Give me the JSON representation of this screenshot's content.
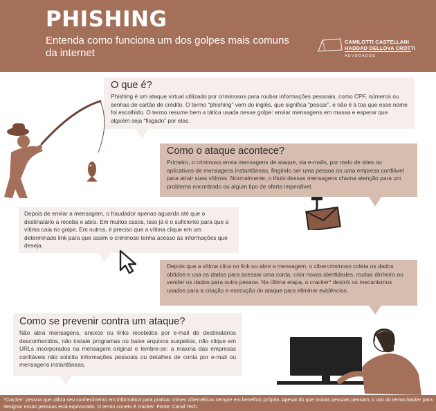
{
  "header": {
    "title": "PHISHING",
    "subtitle": "Entenda como funciona um dos golpes mais comuns da internet",
    "logo": {
      "line1": "CAMILOTTI CASTELLANI",
      "line2": "HADDAD DELLOVA CROTTI",
      "line3": "ADVOGADOS"
    }
  },
  "sections": {
    "o_que_e": {
      "heading": "O que é?",
      "text": "Phishing é um ataque virtual utilizado por criminosos para roubar informações pessoais, como CPF, números ou senhas de cartão de crédito. O termo “phishing” vem do inglês, que significa “pescar”, e não é à toa que esse nome foi escolhido. O termo resume bem a tática usada nesse golpe: enviar mensagens em massa e esperar que alguém seja “fisgado” por elas."
    },
    "como_acontece": {
      "heading": "Como o ataque acontece?",
      "text": "Primeiro, o criminoso envia mensagens de ataque, via e-mails, por meio de sites ou aplicativos de mensagens instantâneas, fingindo ser uma pessoa ou uma empresa confiável para atrair suas vítimas. Normalmente, o título dessas mensagens chama atenção para um problema encontrado ou algum tipo de oferta imperdível."
    },
    "depois_enviar": {
      "text": "Depois de enviar a mensagem, o fraudador apenas aguarda até que o destinatário a receba e abra. Em muitos casos, isso já é o suficiente para que a vítima caia no golpe. Em outros, é preciso que a vítima clique em um determinado link para que assim o criminoso tenha acesso às informações que deseja."
    },
    "depois_clica": {
      "text_before": "Depois que a vítima clica no link ou abre a mensagem, o cibercriminoso coleta os dados obtidos e usa os dados para acessar uma conta, criar novas identidades, roubar dinheiro ou vender os dados para outra pessoa. Na última etapa, o ",
      "emphasis": "cracker*",
      "text_after": " destrói os mecanismos usados para a criação e execução do ataque para eliminar evidências."
    },
    "prevenir": {
      "heading": "Como se prevenir contra um ataque?",
      "text": "Não abra mensagens, anexos ou links recebidos por e-mail de destinatários desconhecidos, não instale programas ou baixe arquivos suspeitos, não clique em URLs incorporados na mensagem original e lembre-se: a maioria das empresas confiáveis não solicita informações pessoais ou detalhes de conta por e-mail ou mensagens instantâneas."
    }
  },
  "footer": {
    "term": "*Cracker",
    "text_1": ": pessoa que utiliza seu conhecimento em informática para praticar crimes cibernéticos sempre em benefício próprio. Apesar do que muitas pessoas pensam, o uso do termo ",
    "term_2": "hacker",
    "text_2": " para designar essas pessoas está equivocado. O termo correto é ",
    "term_3": "cracker",
    "text_3": ". Fonte: Canal Tech."
  },
  "icons": [
    "fisherman-icon",
    "fish-icon",
    "hooked-envelope-icon",
    "cursor-arrow-icon",
    "person-at-computer-icon",
    "logo-mark-icon"
  ],
  "colors": {
    "brand_brown": "#a5705a",
    "box_light": "#f5eeec",
    "box_dark": "#d6bdb0",
    "text": "#3a3a3a"
  }
}
